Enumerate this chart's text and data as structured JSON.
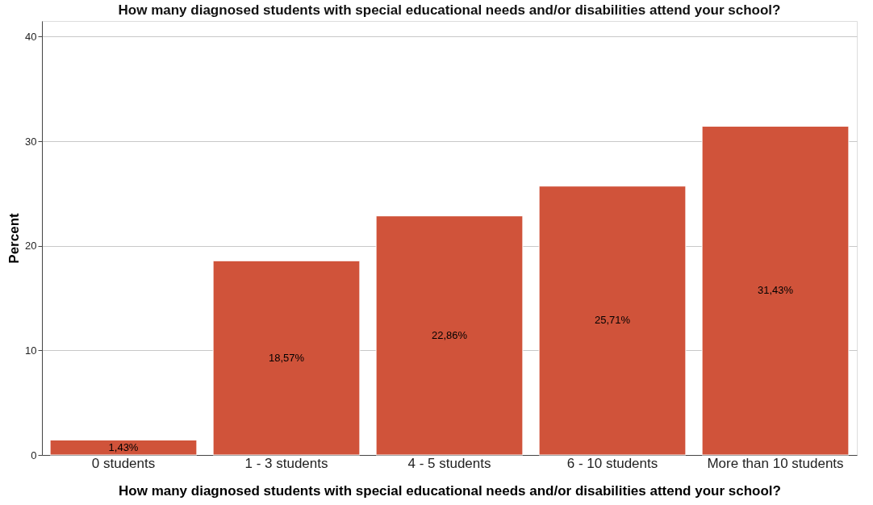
{
  "chart_data": {
    "type": "bar",
    "title": "How many diagnosed students with special educational needs and/or disabilities attend your school?",
    "xlabel": "How many diagnosed students with special educational needs and/or disabilities attend your school?",
    "ylabel": "Percent",
    "categories": [
      "0 students",
      "1 - 3 students",
      "4 - 5 students",
      "6 - 10 students",
      "More than 10 students"
    ],
    "values": [
      1.43,
      18.57,
      22.86,
      25.71,
      31.43
    ],
    "value_labels": [
      "1,43%",
      "18,57%",
      "22,86%",
      "25,71%",
      "31,43%"
    ],
    "color": "#d0533a",
    "ylim": [
      0,
      41.5
    ],
    "yticks": [
      0,
      10,
      20,
      30,
      40
    ],
    "grid": "y"
  }
}
